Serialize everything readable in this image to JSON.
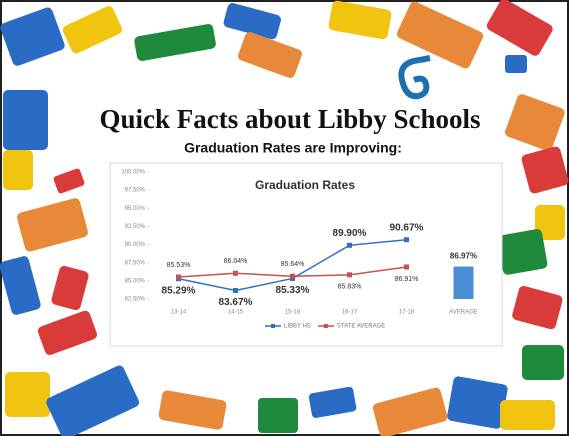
{
  "header": {
    "title": "Quick Facts about Libby Schools",
    "subtitle": "Graduation Rates are Improving:"
  },
  "chart_data": {
    "type": "line",
    "title": "Graduation Rates",
    "categories": [
      "13-14",
      "14-15",
      "15-16",
      "16-17",
      "17-18",
      "AVERAGE"
    ],
    "series": [
      {
        "name": "LIBBY HS",
        "color": "#2f6fc9",
        "values": [
          85.29,
          83.67,
          85.33,
          89.9,
          90.67,
          null
        ],
        "value_labels": [
          "85.29%",
          "83.67%",
          "85.33%",
          "89.90%",
          "90.67%",
          null
        ]
      },
      {
        "name": "STATE AVERAGE",
        "color": "#c9504c",
        "values": [
          85.53,
          86.04,
          85.64,
          85.83,
          86.91,
          null
        ],
        "value_labels": [
          "85.53%",
          "86.04%",
          "85.64%",
          "85.83%",
          "86.91%",
          null
        ]
      },
      {
        "type": "bar",
        "color": "#4a8fd6",
        "values": [
          null,
          null,
          null,
          null,
          null,
          86.97
        ],
        "value_labels": [
          null,
          null,
          null,
          null,
          null,
          "86.97%"
        ]
      }
    ],
    "ylim": [
      82.5,
      100
    ],
    "yticks": [
      {
        "value": 82.5,
        "label": "82.50%"
      },
      {
        "value": 85,
        "label": "85.00%"
      },
      {
        "value": 87.5,
        "label": "87.50%"
      },
      {
        "value": 90,
        "label": "90.00%"
      },
      {
        "value": 92.5,
        "label": "92.50%"
      },
      {
        "value": 95,
        "label": "95.00%"
      },
      {
        "value": 97.5,
        "label": "97.50%"
      },
      {
        "value": 100,
        "label": "100.00%"
      }
    ],
    "legend": "bottom"
  }
}
